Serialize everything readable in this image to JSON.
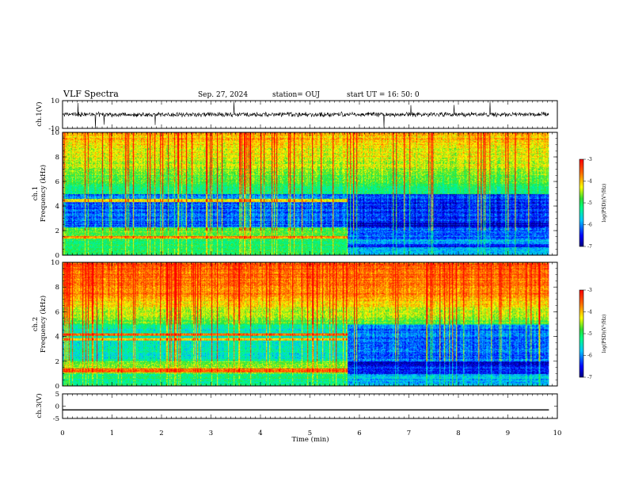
{
  "header": {
    "title": "VLF Spectra",
    "date": "Sep. 27, 2024",
    "station": "station= OUJ",
    "start": "start  UT  =   16: 50: 0"
  },
  "chart_data": [
    {
      "type": "line",
      "name": "ch1_waveform",
      "ylabel": "ch.1(V)",
      "ylim": [
        -10,
        10
      ],
      "yticks": [
        "10",
        "-10"
      ],
      "baseline": 0,
      "amplitude_approx": 2,
      "x_end_min": 9.83
    },
    {
      "type": "heatmap",
      "name": "ch1_spectrogram",
      "ylabel_channel": "ch.1",
      "ylabel": "Frequency (kHz)",
      "ylim": [
        0,
        10
      ],
      "yticks": [
        "0",
        "2",
        "4",
        "6",
        "8",
        "10"
      ],
      "x_end_min": 9.83,
      "transition_min": 5.75,
      "colorbar": {
        "label": "log(PSD)(V²/Hz)",
        "range": [
          -7,
          -3
        ],
        "ticks": [
          "-3",
          "-4",
          "-5",
          "-6",
          "-7"
        ]
      }
    },
    {
      "type": "heatmap",
      "name": "ch2_spectrogram",
      "ylabel_channel": "ch.2",
      "ylabel": "Frequency (kHz)",
      "ylim": [
        0,
        10
      ],
      "yticks": [
        "0",
        "2",
        "4",
        "6",
        "8",
        "10"
      ],
      "x_end_min": 9.83,
      "transition_min": 5.75,
      "colorbar": {
        "label": "log(PSD)(V²/Hz)",
        "range": [
          -7,
          -3
        ],
        "ticks": [
          "-3",
          "-4",
          "-5",
          "-6",
          "-7"
        ]
      }
    },
    {
      "type": "line",
      "name": "ch3_waveform",
      "ylabel": "ch.3(V)",
      "ylim": [
        -5,
        5
      ],
      "yticks": [
        "5",
        "0",
        "-5"
      ],
      "x": [
        0,
        9.83
      ],
      "y": [
        -1.5,
        -1.5
      ]
    }
  ],
  "xaxis": {
    "label": "Time (min)",
    "range": [
      0,
      10
    ],
    "ticks": [
      "0",
      "1",
      "2",
      "3",
      "4",
      "5",
      "6",
      "7",
      "8",
      "9",
      "10"
    ]
  }
}
